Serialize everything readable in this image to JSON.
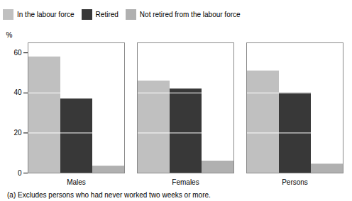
{
  "chart_data": {
    "type": "bar",
    "categories": [
      "Males",
      "Females",
      "Persons"
    ],
    "series": [
      {
        "name": "In the labour force",
        "color": "#c0c0c0",
        "values": [
          58,
          46,
          51
        ]
      },
      {
        "name": "Retired",
        "color": "#383838",
        "values": [
          37,
          42,
          40
        ]
      },
      {
        "name": "Not retired from the labour force",
        "color": "#b0b0b0",
        "values": [
          3.5,
          6.0,
          4.5
        ]
      }
    ],
    "ylim": [
      0,
      65
    ],
    "yticks": [
      0,
      20,
      40,
      60
    ],
    "y_label": "%",
    "grid": true,
    "legend": "top",
    "annotations": [
      "(a) Excludes persons who had never worked two weeks or more."
    ]
  }
}
